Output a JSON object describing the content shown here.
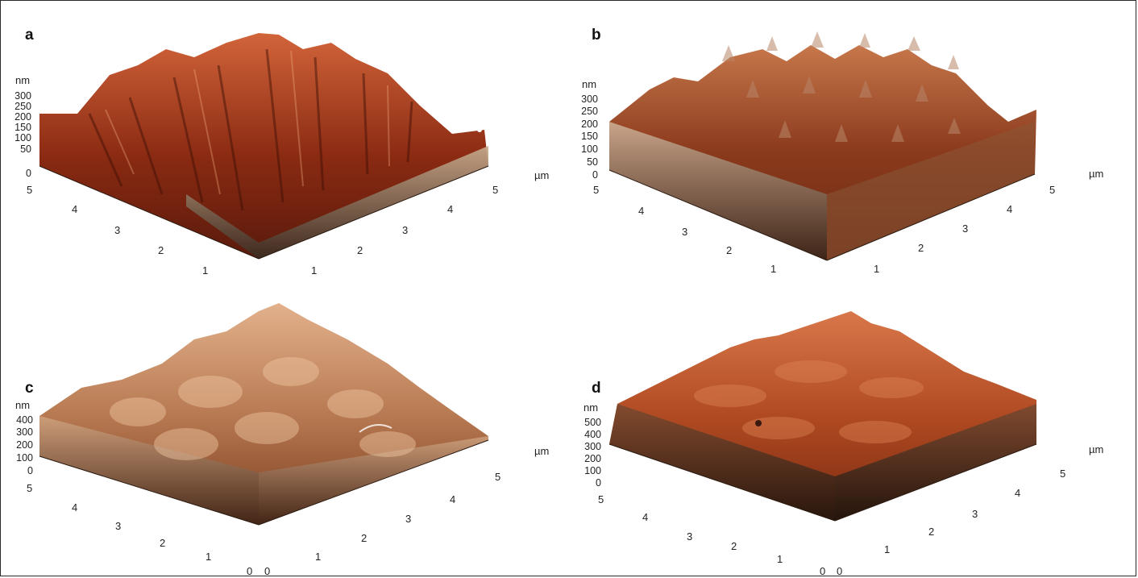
{
  "figure": {
    "panels": [
      {
        "id": "a",
        "label": "a",
        "z_unit": "nm",
        "xy_unit": "µm",
        "z_ticks": [
          "300",
          "250",
          "200",
          "150",
          "100",
          "50",
          "0"
        ],
        "left_axis_ticks": [
          "5",
          "4",
          "3",
          "2",
          "1"
        ],
        "right_axis_ticks": [
          "1",
          "2",
          "3",
          "4",
          "5"
        ],
        "origin_ticks": [],
        "colors": {
          "peak": "#c0502b",
          "deep": "#5a1a0c",
          "wall": "#b49a7e"
        }
      },
      {
        "id": "b",
        "label": "b",
        "z_unit": "nm",
        "xy_unit": "µm",
        "z_ticks": [
          "300",
          "250",
          "200",
          "150",
          "100",
          "50",
          "0"
        ],
        "left_axis_ticks": [
          "5",
          "4",
          "3",
          "2",
          "1"
        ],
        "right_axis_ticks": [
          "1",
          "2",
          "3",
          "4",
          "5"
        ],
        "origin_ticks": [],
        "colors": {
          "peak": "#b8663f",
          "deep": "#6b2a14",
          "wall": "#c8b29a"
        }
      },
      {
        "id": "c",
        "label": "c",
        "z_unit": "nm",
        "xy_unit": "µm",
        "z_ticks": [
          "400",
          "300",
          "200",
          "100",
          "0"
        ],
        "left_axis_ticks": [
          "5",
          "4",
          "3",
          "2",
          "1"
        ],
        "right_axis_ticks": [
          "1",
          "2",
          "3",
          "4",
          "5"
        ],
        "origin_ticks": [
          "0",
          "0"
        ],
        "colors": {
          "peak": "#d9a07a",
          "deep": "#7a3d1e",
          "wall": "#c69774"
        }
      },
      {
        "id": "d",
        "label": "d",
        "z_unit": "nm",
        "xy_unit": "µm",
        "z_ticks": [
          "500",
          "400",
          "300",
          "200",
          "100",
          "0"
        ],
        "left_axis_ticks": [
          "5",
          "4",
          "3",
          "2",
          "1"
        ],
        "right_axis_ticks": [
          "1",
          "2",
          "3",
          "4",
          "5"
        ],
        "origin_ticks": [
          "0",
          "0"
        ],
        "colors": {
          "peak": "#cf6a3c",
          "deep": "#7a2a10",
          "wall": "#6b3a22"
        }
      }
    ]
  }
}
